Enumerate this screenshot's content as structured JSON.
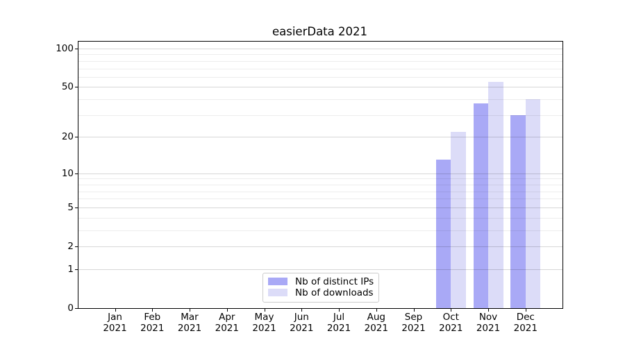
{
  "title": "easierData 2021",
  "colors": {
    "series_distinct_ips": "#a9a9f6",
    "series_downloads": "#dcdcf8",
    "grid_major": "rgba(0,0,0,0.155)",
    "grid_minor": "rgba(0,0,0,0.07)",
    "spine": "#000000",
    "legend_border": "#cccccc"
  },
  "chart_data": {
    "type": "bar",
    "title": "easierData 2021",
    "categories": [
      "Jan",
      "Feb",
      "Mar",
      "Apr",
      "May",
      "Jun",
      "Jul",
      "Aug",
      "Sep",
      "Oct",
      "Nov",
      "Dec"
    ],
    "category_year": "2021",
    "series": [
      {
        "name": "Nb of distinct IPs",
        "color": "#a9a9f6",
        "values": [
          0,
          0,
          0,
          0,
          0,
          0,
          0,
          0,
          0,
          13,
          37,
          30
        ]
      },
      {
        "name": "Nb of downloads",
        "color": "#dcdcf8",
        "values": [
          0,
          0,
          0,
          0,
          0,
          0,
          0,
          0,
          0,
          22,
          55,
          40
        ]
      }
    ],
    "xlabel": "",
    "ylabel": "",
    "yscale": "log1p",
    "y_major_ticks": [
      0,
      1,
      2,
      5,
      10,
      20,
      50,
      100
    ],
    "y_minor_gridlines": [
      3,
      4,
      6,
      7,
      8,
      9,
      30,
      40,
      60,
      70,
      80,
      90
    ],
    "ylim": [
      0,
      114
    ],
    "grid": "horizontal",
    "legend_position": "lower center"
  }
}
